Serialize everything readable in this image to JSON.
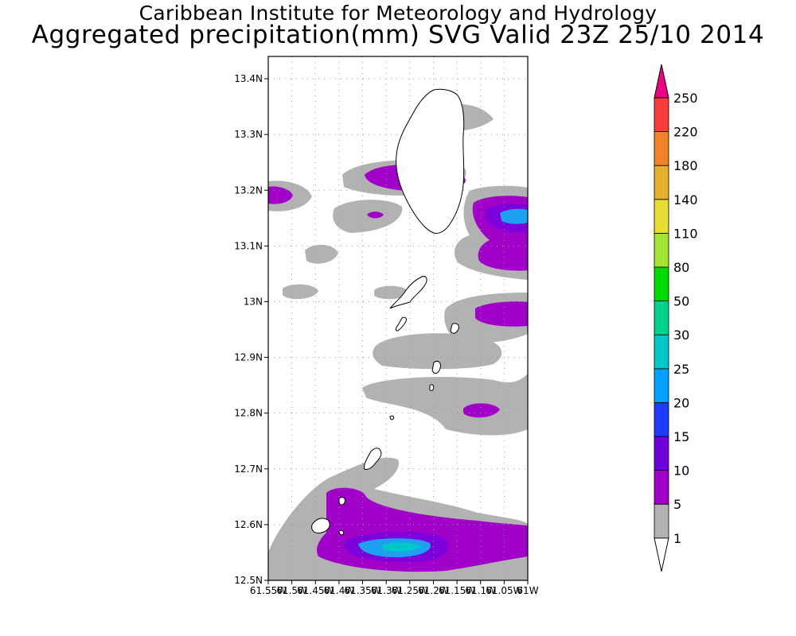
{
  "header": {
    "title": "Caribbean Institute for Meteorology and Hydrology",
    "subtitle": "Aggregated precipitation(mm) SVG Valid 23Z 25/10 2014"
  },
  "map": {
    "lat_range": [
      12.5,
      13.44
    ],
    "lon_range": [
      -61.55,
      -61.0
    ],
    "lat_ticks": [
      "12.5N",
      "12.6N",
      "12.7N",
      "12.8N",
      "12.9N",
      "13N",
      "13.1N",
      "13.2N",
      "13.3N",
      "13.4N"
    ],
    "lon_ticks": [
      "61.55W",
      "61.5W",
      "61.45W",
      "61.4W",
      "61.35W",
      "61.3W",
      "61.25W",
      "61.2W",
      "61.15W",
      "61.1W",
      "61.05W",
      "61W"
    ],
    "grid": true
  },
  "colorbar": {
    "levels": [
      "1",
      "5",
      "10",
      "15",
      "20",
      "25",
      "30",
      "50",
      "80",
      "110",
      "140",
      "180",
      "220",
      "250"
    ],
    "colors": [
      "#b2b2b2",
      "#a000c8",
      "#6e00dc",
      "#1e3cff",
      "#00a0ff",
      "#00c8c8",
      "#00d28c",
      "#00dc00",
      "#a0e632",
      "#e6dc32",
      "#e6af2d",
      "#f08228",
      "#fa3c3c",
      "#f00082"
    ],
    "below_color": "#ffffff"
  },
  "colors": {
    "light_rain": "#b2b2b2",
    "moderate_rain": "#a000c8",
    "heavy_rain": "#7d00dc",
    "peak_rain": "#1ea0f0",
    "peak_core": "#00c8c8"
  }
}
